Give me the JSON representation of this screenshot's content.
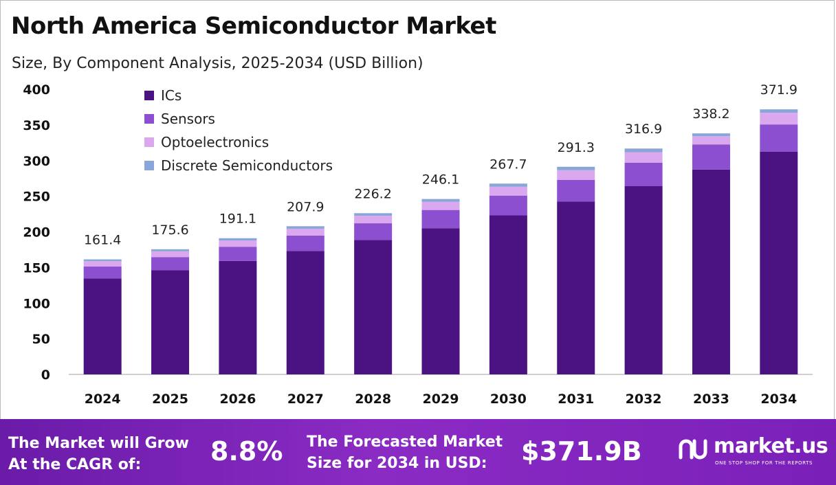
{
  "chart_data": {
    "type": "bar",
    "stacked": true,
    "title": "North America Semiconductor Market",
    "subtitle": "Size, By Component Analysis, 2025-2034 (USD Billion)",
    "categories": [
      "2024",
      "2025",
      "2026",
      "2027",
      "2028",
      "2029",
      "2030",
      "2031",
      "2032",
      "2033",
      "2034"
    ],
    "totals": [
      161.4,
      175.6,
      191.1,
      207.9,
      226.2,
      246.1,
      267.7,
      291.3,
      316.9,
      338.2,
      371.9
    ],
    "series": [
      {
        "name": "ICs",
        "color": "#4b1282",
        "values": [
          134.5,
          146.3,
          159.2,
          173.2,
          188.5,
          205.1,
          223.1,
          242.7,
          264.1,
          287.4,
          312.6
        ]
      },
      {
        "name": "Sensors",
        "color": "#8c4fcf",
        "values": [
          16.8,
          18.3,
          19.9,
          21.6,
          23.5,
          25.6,
          27.8,
          30.3,
          33.0,
          35.3,
          38.1
        ]
      },
      {
        "name": "Optoelectronics",
        "color": "#d9a8ee",
        "values": [
          7.5,
          8.1,
          8.8,
          9.6,
          10.5,
          11.4,
          12.4,
          13.5,
          14.7,
          11.5,
          16.5
        ]
      },
      {
        "name": "Discrete Semiconductors",
        "color": "#8aa6d9",
        "values": [
          2.6,
          2.9,
          3.2,
          3.5,
          3.7,
          4.0,
          4.4,
          4.8,
          5.1,
          4.0,
          4.7
        ]
      }
    ],
    "ylim": [
      0,
      400
    ],
    "yticks": [
      0,
      50,
      100,
      150,
      200,
      250,
      300,
      350,
      400
    ],
    "legend_position": "top-left",
    "grid": false
  },
  "footer": {
    "cagr_label_line1": "The Market will Grow",
    "cagr_label_line2": "At the CAGR of:",
    "cagr_value": "8.8%",
    "forecast_label_line1": "The Forecasted Market",
    "forecast_label_line2": "Size for 2034 in USD:",
    "forecast_value": "$371.9B",
    "logo_text": "market.us",
    "logo_tagline": "ONE STOP SHOP FOR THE REPORTS"
  },
  "colors": {
    "footer_start": "#6a1ba8",
    "footer_end": "#8a2bc4"
  }
}
